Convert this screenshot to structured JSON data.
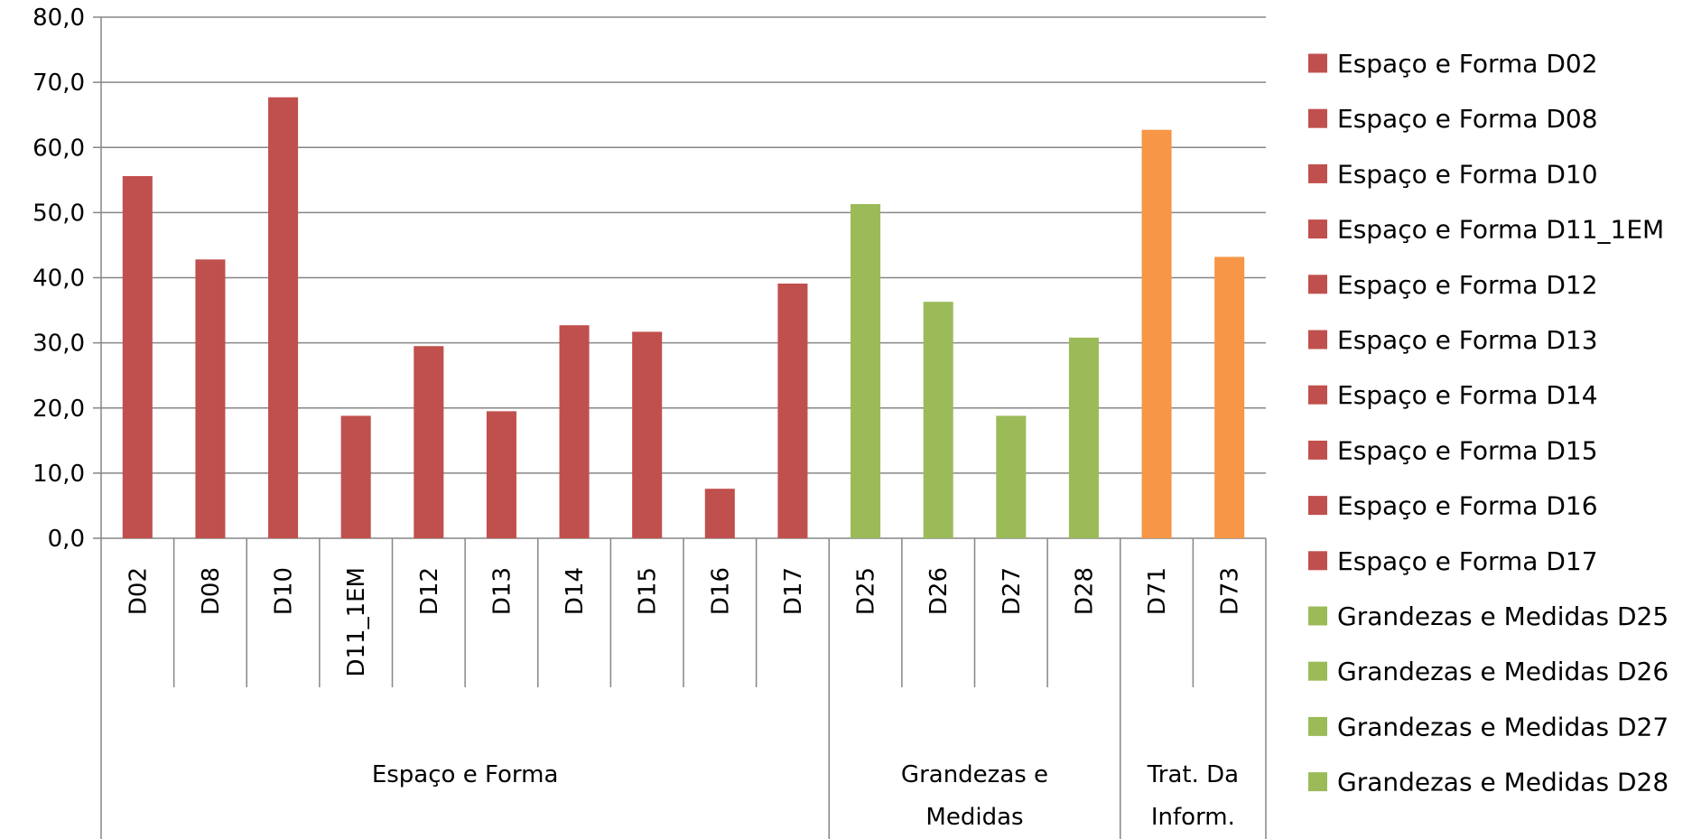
{
  "chart_data": {
    "type": "bar",
    "ylim": [
      0,
      80
    ],
    "yticks": [
      "0,0",
      "10,0",
      "20,0",
      "30,0",
      "40,0",
      "50,0",
      "60,0",
      "70,0",
      "80,0"
    ],
    "grid": true,
    "legend_position": "right",
    "categories": [
      "D02",
      "D08",
      "D10",
      "D11_1EM",
      "D12",
      "D13",
      "D14",
      "D15",
      "D16",
      "D17",
      "D25",
      "D26",
      "D27",
      "D28",
      "D71",
      "D73"
    ],
    "groups": [
      {
        "label_lines": [
          "Espaço e Forma"
        ],
        "count": 10,
        "color": "#C0504D"
      },
      {
        "label_lines": [
          "Grandezas e",
          "Medidas"
        ],
        "count": 4,
        "color": "#9BBB59"
      },
      {
        "label_lines": [
          "Trat. Da",
          "Inform."
        ],
        "count": 2,
        "color": "#F79646"
      }
    ],
    "values": [
      55.6,
      42.8,
      67.7,
      18.8,
      29.5,
      19.5,
      32.7,
      31.7,
      7.6,
      39.1,
      51.3,
      36.3,
      18.8,
      30.8,
      62.7,
      43.2
    ],
    "legend": [
      {
        "label": "Espaço e Forma D02",
        "color": "#C0504D"
      },
      {
        "label": "Espaço e Forma D08",
        "color": "#C0504D"
      },
      {
        "label": "Espaço e Forma D10",
        "color": "#C0504D"
      },
      {
        "label": "Espaço e Forma D11_1EM",
        "color": "#C0504D"
      },
      {
        "label": "Espaço e Forma D12",
        "color": "#C0504D"
      },
      {
        "label": "Espaço e Forma D13",
        "color": "#C0504D"
      },
      {
        "label": "Espaço e Forma D14",
        "color": "#C0504D"
      },
      {
        "label": "Espaço e Forma D15",
        "color": "#C0504D"
      },
      {
        "label": "Espaço e Forma D16",
        "color": "#C0504D"
      },
      {
        "label": "Espaço e Forma D17",
        "color": "#C0504D"
      },
      {
        "label": "Grandezas e Medidas D25",
        "color": "#9BBB59"
      },
      {
        "label": "Grandezas e Medidas D26",
        "color": "#9BBB59"
      },
      {
        "label": "Grandezas e Medidas D27",
        "color": "#9BBB59"
      },
      {
        "label": "Grandezas e Medidas D28",
        "color": "#9BBB59"
      }
    ]
  }
}
